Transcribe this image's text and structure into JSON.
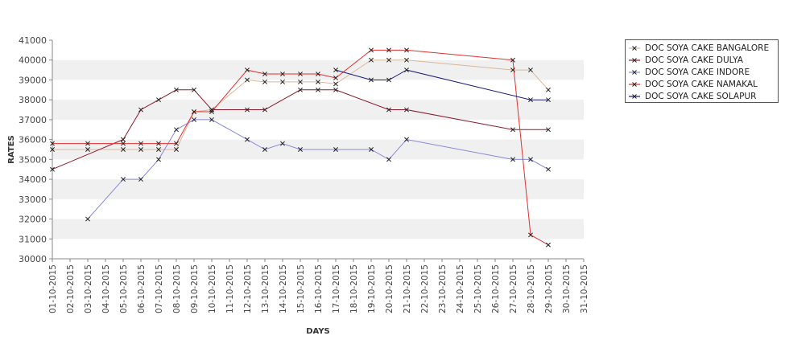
{
  "chart_data": {
    "type": "line",
    "xlabel": "DAYS",
    "ylabel": "RATES",
    "ylim": [
      30000,
      41000
    ],
    "yticks": [
      30000,
      31000,
      32000,
      33000,
      34000,
      35000,
      36000,
      37000,
      38000,
      39000,
      40000,
      41000
    ],
    "categories": [
      "01-10-2015",
      "02-10-2015",
      "03-10-2015",
      "04-10-2015",
      "05-10-2015",
      "06-10-2015",
      "07-10-2015",
      "08-10-2015",
      "09-10-2015",
      "10-10-2015",
      "11-10-2015",
      "12-10-2015",
      "13-10-2015",
      "14-10-2015",
      "15-10-2015",
      "16-10-2015",
      "17-10-2015",
      "18-10-2015",
      "19-10-2015",
      "20-10-2015",
      "21-10-2015",
      "22-10-2015",
      "23-10-2015",
      "24-10-2015",
      "25-10-2015",
      "26-10-2015",
      "27-10-2015",
      "28-10-2015",
      "29-10-2015",
      "30-10-2015",
      "31-10-2015"
    ],
    "grid": "alternating horizontal bands",
    "legend": "right",
    "series": [
      {
        "name": "DOC SOYA CAKE BANGALORE",
        "color": "#d8b89a",
        "points": [
          [
            0,
            35500
          ],
          [
            2,
            35500
          ],
          [
            4,
            35500
          ],
          [
            5,
            35500
          ],
          [
            6,
            35500
          ],
          [
            7,
            35500
          ],
          [
            8,
            37400
          ],
          [
            9,
            37500
          ],
          [
            11,
            39000
          ],
          [
            12,
            38900
          ],
          [
            13,
            38900
          ],
          [
            14,
            38900
          ],
          [
            15,
            38900
          ],
          [
            16,
            38800
          ],
          [
            18,
            40000
          ],
          [
            19,
            40000
          ],
          [
            20,
            40000
          ],
          [
            26,
            39500
          ],
          [
            27,
            39500
          ],
          [
            28,
            38500
          ]
        ]
      },
      {
        "name": "DOC SOYA CAKE DULYA",
        "color": "#8b1a2b",
        "points": [
          [
            0,
            34500
          ],
          [
            4,
            36000
          ],
          [
            5,
            37500
          ],
          [
            6,
            38000
          ],
          [
            7,
            38500
          ],
          [
            8,
            38500
          ],
          [
            9,
            37500
          ],
          [
            11,
            37500
          ],
          [
            12,
            37500
          ],
          [
            14,
            38500
          ],
          [
            15,
            38500
          ],
          [
            16,
            38500
          ],
          [
            19,
            37500
          ],
          [
            20,
            37500
          ],
          [
            26,
            36500
          ],
          [
            28,
            36500
          ]
        ]
      },
      {
        "name": "DOC SOYA CAKE INDORE",
        "color": "#8888dd",
        "points": [
          [
            2,
            32000
          ],
          [
            4,
            34000
          ],
          [
            5,
            34000
          ],
          [
            6,
            35000
          ],
          [
            7,
            36500
          ],
          [
            8,
            37000
          ],
          [
            9,
            37000
          ],
          [
            11,
            36000
          ],
          [
            12,
            35500
          ],
          [
            13,
            35800
          ],
          [
            14,
            35500
          ],
          [
            16,
            35500
          ],
          [
            18,
            35500
          ],
          [
            19,
            35000
          ],
          [
            20,
            36000
          ],
          [
            26,
            35000
          ],
          [
            27,
            35000
          ],
          [
            28,
            34500
          ]
        ]
      },
      {
        "name": "DOC SOYA CAKE NAMAKAL",
        "color": "#e03030",
        "points": [
          [
            0,
            35800
          ],
          [
            2,
            35800
          ],
          [
            4,
            35800
          ],
          [
            5,
            35800
          ],
          [
            6,
            35800
          ],
          [
            7,
            35800
          ],
          [
            8,
            37400
          ],
          [
            9,
            37400
          ],
          [
            11,
            39500
          ],
          [
            12,
            39300
          ],
          [
            13,
            39300
          ],
          [
            14,
            39300
          ],
          [
            15,
            39300
          ],
          [
            16,
            39100
          ],
          [
            18,
            40500
          ],
          [
            19,
            40500
          ],
          [
            20,
            40500
          ],
          [
            26,
            40000
          ],
          [
            27,
            31200
          ],
          [
            28,
            30700
          ]
        ]
      },
      {
        "name": "DOC SOYA CAKE SOLAPUR",
        "color": "#1a1a7a",
        "points": [
          [
            16,
            39500
          ],
          [
            18,
            39000
          ],
          [
            19,
            39000
          ],
          [
            20,
            39500
          ],
          [
            27,
            38000
          ],
          [
            28,
            38000
          ]
        ]
      }
    ]
  }
}
